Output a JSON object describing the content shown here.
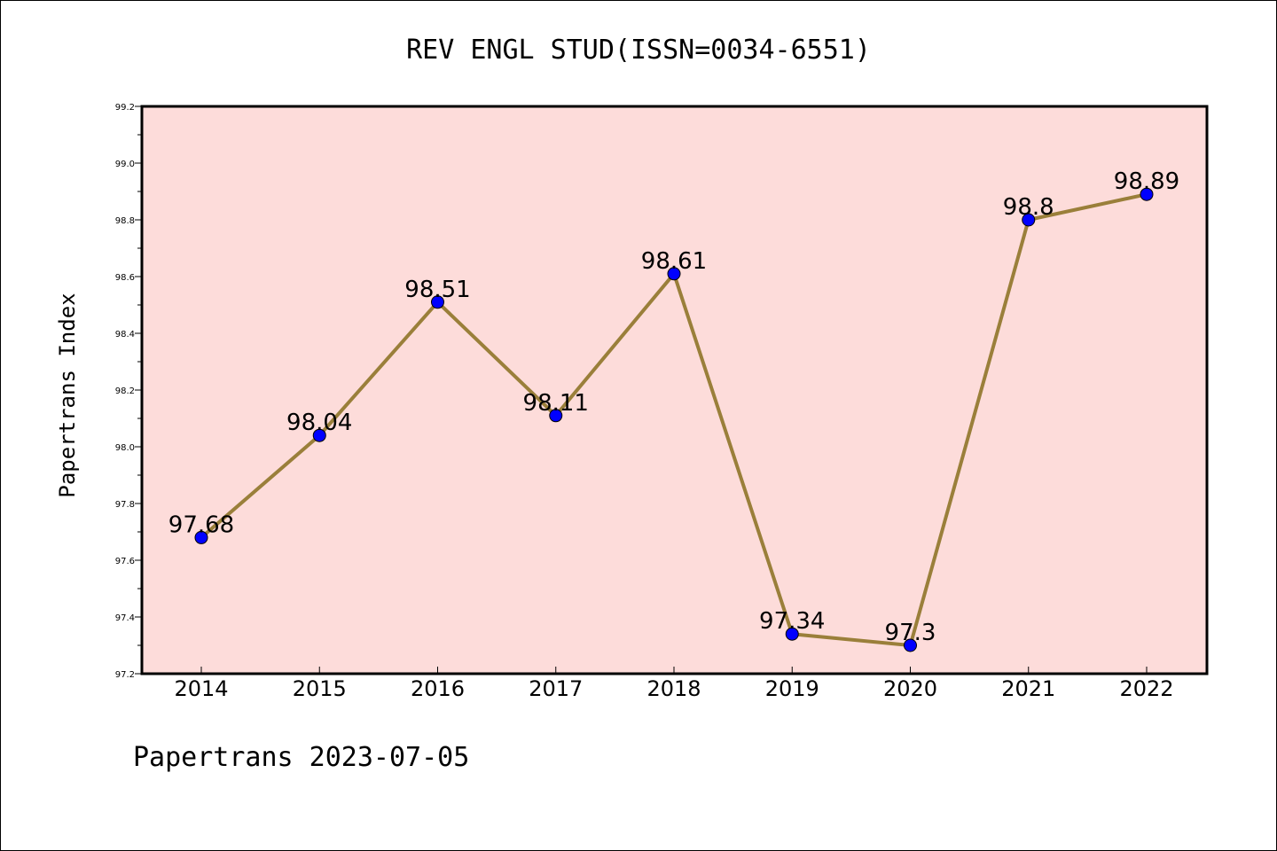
{
  "chart_data": {
    "type": "line",
    "title": "REV ENGL STUD(ISSN=0034-6551)",
    "xlabel": "",
    "ylabel": "Papertrans Index",
    "footer": "Papertrans 2023-07-05",
    "x": [
      "2014",
      "2015",
      "2016",
      "2017",
      "2018",
      "2019",
      "2020",
      "2021",
      "2022"
    ],
    "series": [
      {
        "values": [
          97.68,
          98.04,
          98.51,
          98.11,
          98.61,
          97.34,
          97.3,
          98.8,
          98.89
        ],
        "labels": [
          "97.68",
          "98.04",
          "98.51",
          "98.11",
          "98.61",
          "97.34",
          "97.3",
          "98.8",
          "98.89"
        ]
      }
    ],
    "ylim": [
      97.2,
      99.2
    ],
    "yticks": [
      "97.2",
      "97.4",
      "97.6",
      "97.8",
      "98.0",
      "98.2",
      "98.4",
      "98.6",
      "98.8",
      "99.0",
      "99.2"
    ],
    "grid": false,
    "colors": {
      "plot_background": "#fddcda",
      "line": "#9a7f3a",
      "marker": "#0000ff"
    }
  }
}
